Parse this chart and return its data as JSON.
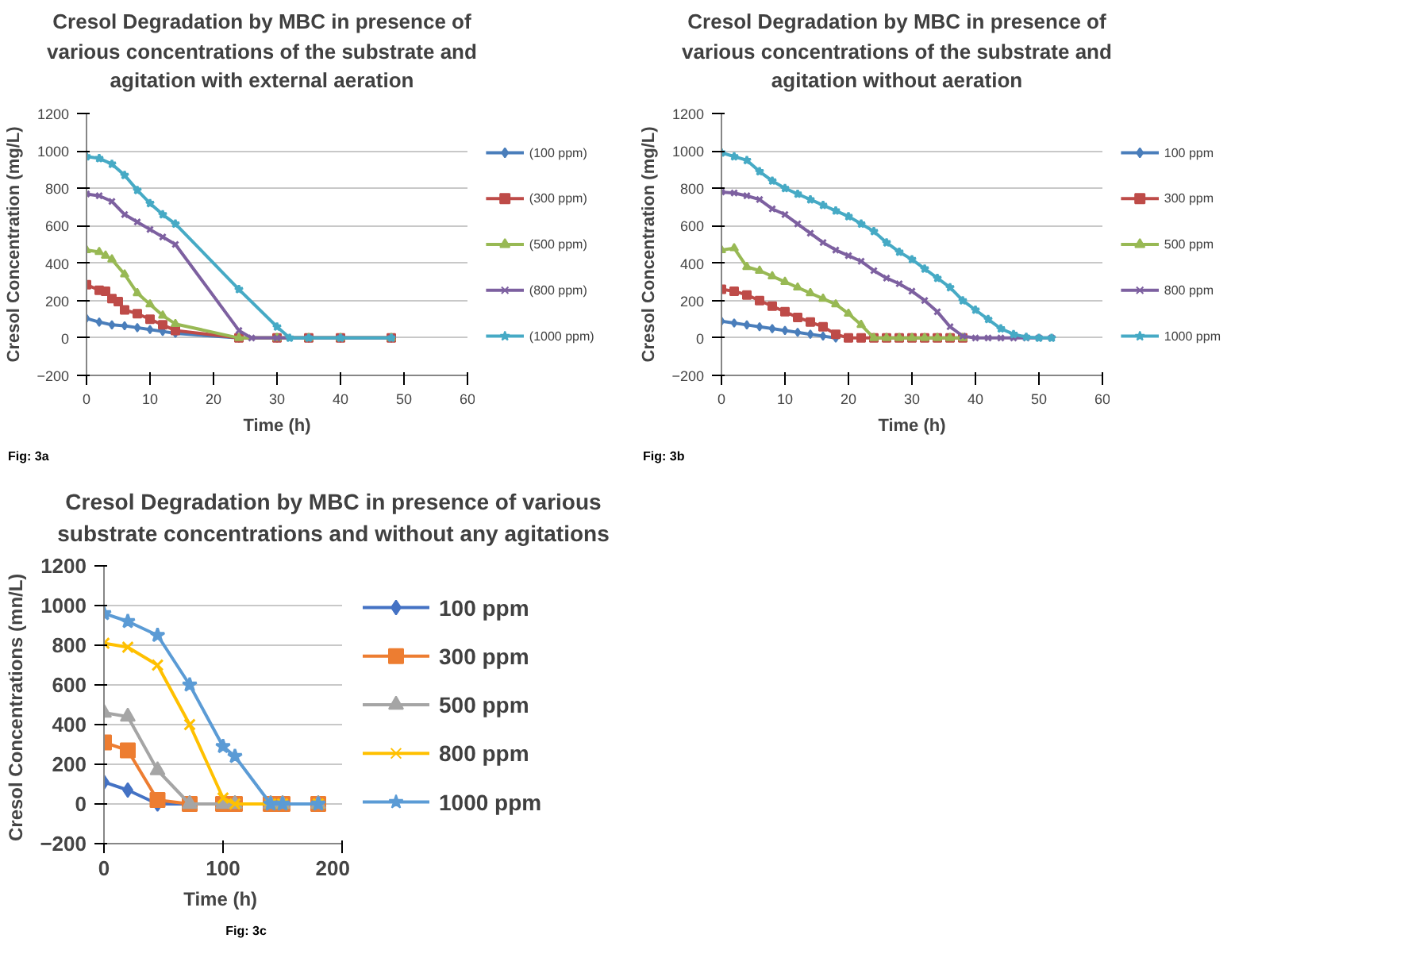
{
  "chart_data": [
    {
      "type": "line",
      "title": "Cresol Degradation by MBC in presence of various concentrations of the substrate and agitation with external aeration",
      "xlabel": "Time (h)",
      "ylabel": "Cresol Concentration (mg/L)",
      "xlim": [
        0,
        60
      ],
      "xticks": [
        0,
        10,
        20,
        30,
        40,
        50,
        60
      ],
      "ylim": [
        -200,
        1200
      ],
      "yticks": [
        -200,
        0,
        200,
        400,
        600,
        800,
        1000,
        1200
      ],
      "grid": "y",
      "legend": "right",
      "annotations": [
        "Fig: 3a"
      ],
      "series": [
        {
          "name": "(100 ppm)",
          "color": "#4a7ebb",
          "marker": "diamond",
          "x": [
            0,
            2,
            4,
            6,
            8,
            10,
            12,
            14,
            24,
            30,
            35,
            40,
            48
          ],
          "values": [
            105,
            85,
            70,
            65,
            55,
            45,
            35,
            25,
            0,
            0,
            0,
            0,
            0
          ]
        },
        {
          "name": "(300 ppm)",
          "color": "#be4b48",
          "marker": "square",
          "x": [
            0,
            2,
            3,
            4,
            5,
            6,
            8,
            10,
            12,
            14,
            24,
            30,
            35,
            40,
            48
          ],
          "values": [
            285,
            255,
            250,
            210,
            195,
            150,
            130,
            100,
            70,
            40,
            0,
            0,
            0,
            0,
            0
          ]
        },
        {
          "name": "(500 ppm)",
          "color": "#98b954",
          "marker": "triangle",
          "x": [
            0,
            2,
            3,
            4,
            6,
            8,
            10,
            12,
            14,
            24,
            30,
            35,
            40,
            48
          ],
          "values": [
            470,
            460,
            440,
            420,
            340,
            240,
            180,
            120,
            75,
            0,
            0,
            0,
            0,
            0
          ]
        },
        {
          "name": "(800 ppm)",
          "color": "#7d60a0",
          "marker": "cross",
          "x": [
            0,
            2,
            4,
            6,
            8,
            10,
            12,
            14,
            24,
            26,
            30,
            35,
            40,
            48
          ],
          "values": [
            770,
            760,
            730,
            660,
            620,
            580,
            540,
            500,
            40,
            0,
            0,
            0,
            0,
            0
          ]
        },
        {
          "name": "(1000 ppm)",
          "color": "#46aac5",
          "marker": "star",
          "x": [
            0,
            2,
            4,
            6,
            8,
            10,
            12,
            14,
            24,
            30,
            32,
            35,
            40,
            48
          ],
          "values": [
            970,
            960,
            930,
            870,
            790,
            720,
            660,
            610,
            260,
            60,
            0,
            0,
            0,
            0
          ]
        }
      ]
    },
    {
      "type": "line",
      "title": "Cresol Degradation by MBC in presence of various concentrations of the substrate and agitation without aeration",
      "xlabel": "Time (h)",
      "ylabel": "Cresol Concentration (mg/L)",
      "xlim": [
        0,
        60
      ],
      "xticks": [
        0,
        10,
        20,
        30,
        40,
        50,
        60
      ],
      "ylim": [
        -200,
        1200
      ],
      "yticks": [
        -200,
        0,
        200,
        400,
        600,
        800,
        1000,
        1200
      ],
      "grid": "y",
      "legend": "right",
      "annotations": [
        "Fig: 3b"
      ],
      "series": [
        {
          "name": "100 ppm",
          "color": "#4a7ebb",
          "marker": "diamond",
          "x": [
            0,
            2,
            4,
            6,
            8,
            10,
            12,
            14,
            16,
            18
          ],
          "values": [
            90,
            80,
            70,
            60,
            50,
            40,
            30,
            20,
            10,
            0
          ]
        },
        {
          "name": "300 ppm",
          "color": "#be4b48",
          "marker": "square",
          "x": [
            0,
            2,
            4,
            6,
            8,
            10,
            12,
            14,
            16,
            18,
            20,
            22,
            24,
            26,
            28,
            30,
            32,
            34,
            36,
            38
          ],
          "values": [
            260,
            250,
            230,
            200,
            170,
            140,
            110,
            85,
            60,
            20,
            0,
            0,
            0,
            0,
            0,
            0,
            0,
            0,
            0,
            0
          ]
        },
        {
          "name": "500 ppm",
          "color": "#98b954",
          "marker": "triangle",
          "x": [
            0,
            2,
            4,
            6,
            8,
            10,
            12,
            14,
            16,
            18,
            20,
            22,
            24,
            26,
            28,
            30,
            32,
            34,
            36,
            38
          ],
          "values": [
            470,
            480,
            380,
            360,
            330,
            300,
            270,
            240,
            210,
            180,
            130,
            70,
            0,
            0,
            0,
            0,
            0,
            0,
            0,
            0
          ]
        },
        {
          "name": "800 ppm",
          "color": "#7d60a0",
          "marker": "cross",
          "x": [
            0,
            2,
            4,
            6,
            8,
            10,
            12,
            14,
            16,
            18,
            20,
            22,
            24,
            26,
            28,
            30,
            32,
            34,
            36,
            38,
            40,
            42,
            44,
            46,
            48,
            50,
            52
          ],
          "values": [
            780,
            775,
            760,
            740,
            690,
            660,
            610,
            560,
            510,
            470,
            440,
            410,
            360,
            320,
            290,
            250,
            200,
            140,
            60,
            10,
            0,
            0,
            0,
            0,
            0,
            0,
            0
          ]
        },
        {
          "name": "1000 ppm",
          "color": "#46aac5",
          "marker": "star",
          "x": [
            0,
            2,
            4,
            6,
            8,
            10,
            12,
            14,
            16,
            18,
            20,
            22,
            24,
            26,
            28,
            30,
            32,
            34,
            36,
            38,
            40,
            42,
            44,
            46,
            48,
            50,
            52
          ],
          "values": [
            990,
            970,
            950,
            890,
            840,
            800,
            770,
            740,
            710,
            680,
            650,
            610,
            570,
            510,
            460,
            420,
            370,
            320,
            270,
            200,
            150,
            100,
            50,
            20,
            5,
            0,
            0
          ]
        }
      ]
    },
    {
      "type": "line",
      "title": "Cresol Degradation by MBC in presence of various substrate concentrations and without any agitations",
      "xlabel": "Time  (h)",
      "ylabel": "Cresol  Concentrations (mn/L)",
      "xlim": [
        0,
        200
      ],
      "xticks": [
        0,
        100,
        200
      ],
      "ylim": [
        -200,
        1200
      ],
      "yticks": [
        -200,
        0,
        200,
        400,
        600,
        800,
        1000,
        1200
      ],
      "grid": "y",
      "legend": "right",
      "annotations": [
        "Fig: 3c"
      ],
      "series": [
        {
          "name": "100 ppm",
          "color": "#4472c4",
          "marker": "diamond",
          "x": [
            0,
            20,
            45,
            72,
            100,
            110,
            140,
            150,
            180
          ],
          "values": [
            110,
            70,
            0,
            0,
            0,
            0,
            0,
            0,
            0
          ]
        },
        {
          "name": "300 ppm",
          "color": "#ed7d31",
          "marker": "square",
          "x": [
            0,
            20,
            45,
            72,
            100,
            110,
            140,
            150,
            180
          ],
          "values": [
            310,
            270,
            20,
            0,
            0,
            0,
            0,
            0,
            0
          ]
        },
        {
          "name": "500 ppm",
          "color": "#a5a5a5",
          "marker": "triangle",
          "x": [
            0,
            20,
            45,
            72,
            100,
            110,
            140,
            150,
            180
          ],
          "values": [
            460,
            440,
            170,
            0,
            0,
            0,
            0,
            0,
            0
          ]
        },
        {
          "name": "800 ppm",
          "color": "#ffc000",
          "marker": "cross",
          "x": [
            0,
            20,
            45,
            72,
            100,
            110,
            140,
            150,
            180
          ],
          "values": [
            810,
            790,
            700,
            400,
            30,
            0,
            0,
            0,
            0
          ]
        },
        {
          "name": "1000 ppm",
          "color": "#5b9bd5",
          "marker": "star",
          "x": [
            0,
            20,
            45,
            72,
            100,
            110,
            140,
            150,
            180
          ],
          "values": [
            960,
            920,
            850,
            600,
            290,
            240,
            0,
            0,
            0
          ]
        }
      ]
    }
  ]
}
